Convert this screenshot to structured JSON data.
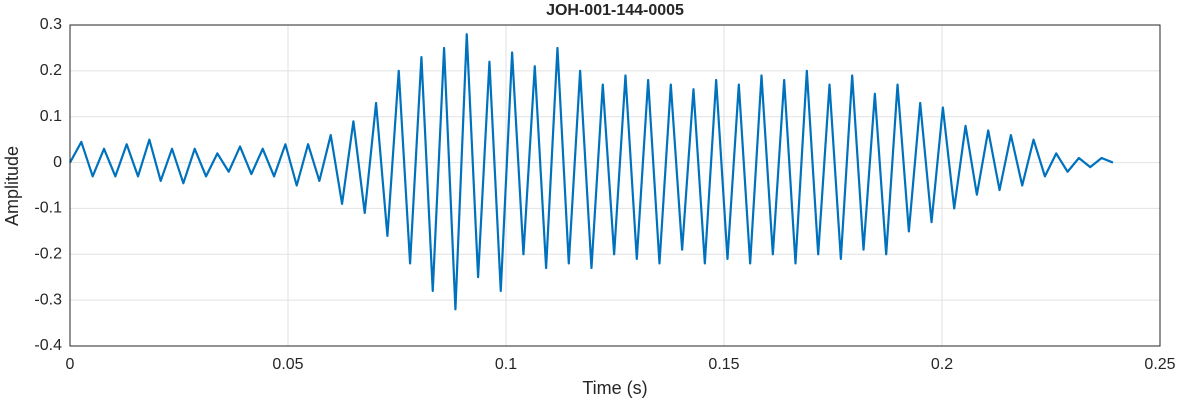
{
  "chart_data": {
    "type": "line",
    "title": "JOH-001-144-0005",
    "x_label": "Time (s)",
    "y_label": "Amplitude",
    "x": [
      0,
      0.0026,
      0.0052,
      0.0078,
      0.0104,
      0.013,
      0.0156,
      0.0182,
      0.0208,
      0.0234,
      0.026,
      0.0286,
      0.0312,
      0.0338,
      0.0364,
      0.039,
      0.0416,
      0.0442,
      0.0468,
      0.0494,
      0.052,
      0.0546,
      0.0572,
      0.0598,
      0.0624,
      0.065,
      0.0676,
      0.0702,
      0.0728,
      0.0754,
      0.078,
      0.0806,
      0.0832,
      0.0858,
      0.0884,
      0.091,
      0.0936,
      0.0962,
      0.0988,
      0.1014,
      0.104,
      0.1066,
      0.1092,
      0.1118,
      0.1144,
      0.117,
      0.1196,
      0.1222,
      0.1248,
      0.1274,
      0.13,
      0.1326,
      0.1352,
      0.1378,
      0.1404,
      0.143,
      0.1456,
      0.1482,
      0.1508,
      0.1534,
      0.156,
      0.1586,
      0.1612,
      0.1638,
      0.1664,
      0.169,
      0.1716,
      0.1742,
      0.1768,
      0.1794,
      0.182,
      0.1846,
      0.1872,
      0.1898,
      0.1924,
      0.195,
      0.1976,
      0.2002,
      0.2028,
      0.2054,
      0.208,
      0.2106,
      0.2132,
      0.2158,
      0.2184,
      0.221,
      0.2236,
      0.2262,
      0.2288,
      0.2314,
      0.234,
      0.2366,
      0.2392
    ],
    "series": [
      {
        "name": "Amplitude",
        "color": "#0072bd",
        "values": [
          0,
          0.045,
          -0.03,
          0.03,
          -0.03,
          0.04,
          -0.03,
          0.05,
          -0.04,
          0.03,
          -0.045,
          0.03,
          -0.03,
          0.02,
          -0.02,
          0.035,
          -0.025,
          0.03,
          -0.03,
          0.04,
          -0.05,
          0.04,
          -0.04,
          0.06,
          -0.09,
          0.09,
          -0.11,
          0.13,
          -0.16,
          0.2,
          -0.22,
          0.23,
          -0.28,
          0.25,
          -0.32,
          0.28,
          -0.25,
          0.22,
          -0.28,
          0.24,
          -0.2,
          0.21,
          -0.23,
          0.25,
          -0.22,
          0.2,
          -0.23,
          0.17,
          -0.2,
          0.19,
          -0.21,
          0.18,
          -0.22,
          0.17,
          -0.19,
          0.16,
          -0.22,
          0.18,
          -0.21,
          0.17,
          -0.22,
          0.19,
          -0.2,
          0.18,
          -0.22,
          0.2,
          -0.2,
          0.17,
          -0.21,
          0.19,
          -0.19,
          0.15,
          -0.2,
          0.17,
          -0.15,
          0.13,
          -0.13,
          0.12,
          -0.1,
          0.08,
          -0.07,
          0.07,
          -0.06,
          0.06,
          -0.05,
          0.05,
          -0.03,
          0.02,
          -0.02,
          0.01,
          -0.01,
          0.01,
          0
        ]
      }
    ],
    "xlim": [
      0,
      0.25
    ],
    "xticks": [
      0,
      0.05,
      0.1,
      0.15,
      0.2,
      0.25
    ],
    "ylim": [
      -0.4,
      0.3
    ],
    "yticks": [
      -0.4,
      -0.3,
      -0.2,
      -0.1,
      0,
      0.1,
      0.2,
      0.3
    ],
    "grid": true
  }
}
